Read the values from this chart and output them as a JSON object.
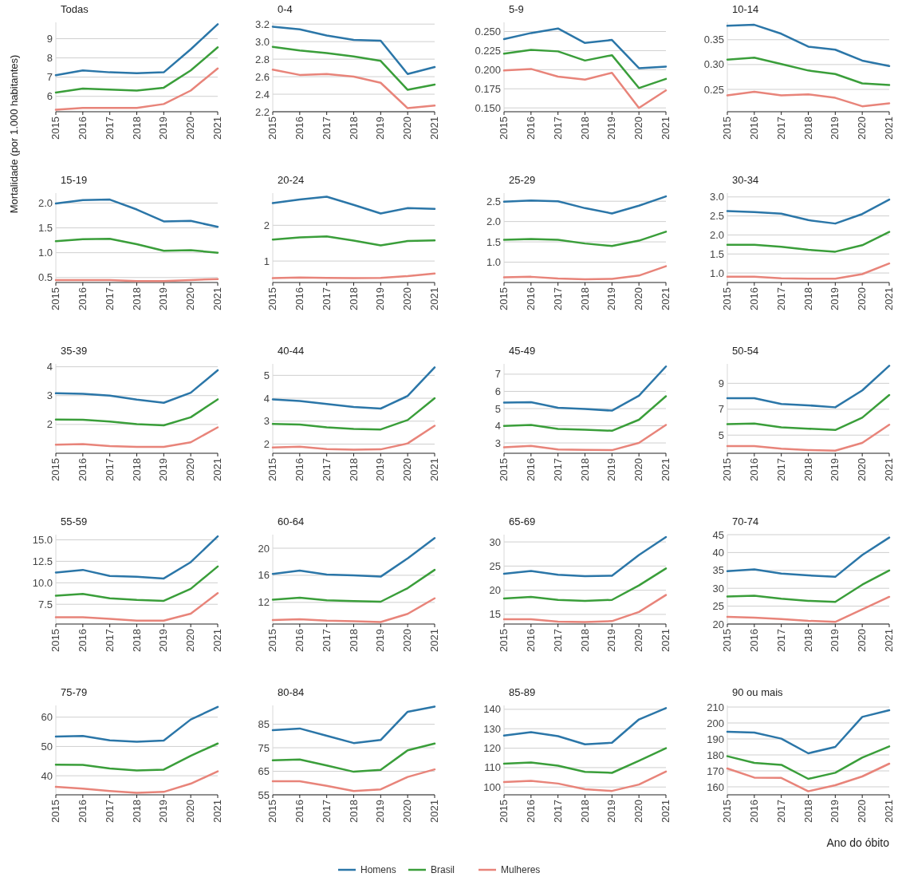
{
  "chart_data": [
    {
      "type": "line",
      "title": "Todas",
      "ylabel": "Mortalidade (por 1.000 habitantes)",
      "legend": "bottom",
      "grid": "y",
      "categories": [
        "2015",
        "2016",
        "2017",
        "2018",
        "2019",
        "2020",
        "2021"
      ],
      "ylim": [
        5.2,
        9.85
      ],
      "yticks": [
        6,
        7,
        8,
        9
      ],
      "series": [
        {
          "name": "Homens",
          "color": "#2b76a8",
          "values": [
            7.1,
            7.35,
            7.25,
            7.2,
            7.25,
            8.45,
            9.75
          ]
        },
        {
          "name": "Brasil",
          "color": "#3a9e3a",
          "values": [
            6.2,
            6.4,
            6.35,
            6.3,
            6.45,
            7.35,
            8.55
          ]
        },
        {
          "name": "Mulheres",
          "color": "#e8847a",
          "values": [
            5.3,
            5.4,
            5.4,
            5.4,
            5.6,
            6.3,
            7.45
          ]
        }
      ]
    },
    {
      "type": "line",
      "title": "0-4",
      "grid": "y",
      "categories": [
        "2015",
        "2016",
        "2017",
        "2018",
        "2019",
        "2020",
        "2021"
      ],
      "ylim": [
        2.2,
        3.22
      ],
      "yticks": [
        2.2,
        2.4,
        2.6,
        2.8,
        {
          "value": 3,
          "label": "3.0"
        },
        3.2
      ],
      "series": [
        {
          "name": "Homens",
          "color": "#2b76a8",
          "values": [
            3.17,
            3.14,
            3.07,
            3.02,
            3.01,
            2.63,
            2.71
          ]
        },
        {
          "name": "Brasil",
          "color": "#3a9e3a",
          "values": [
            2.94,
            2.9,
            2.87,
            2.83,
            2.78,
            2.45,
            2.51
          ]
        },
        {
          "name": "Mulheres",
          "color": "#e8847a",
          "values": [
            2.68,
            2.62,
            2.63,
            2.6,
            2.53,
            2.24,
            2.27
          ]
        }
      ]
    },
    {
      "type": "line",
      "title": "5-9",
      "grid": "y",
      "categories": [
        "2015",
        "2016",
        "2017",
        "2018",
        "2019",
        "2020",
        "2021"
      ],
      "ylim": [
        0.145,
        0.262
      ],
      "yticks": [
        {
          "value": 0.15,
          "label": "0.150"
        },
        0.175,
        {
          "value": 0.2,
          "label": "0.200"
        },
        0.225,
        {
          "value": 0.25,
          "label": "0.250"
        }
      ],
      "series": [
        {
          "name": "Homens",
          "color": "#2b76a8",
          "values": [
            0.24,
            0.248,
            0.254,
            0.235,
            0.239,
            0.202,
            0.204
          ]
        },
        {
          "name": "Brasil",
          "color": "#3a9e3a",
          "values": [
            0.221,
            0.226,
            0.224,
            0.212,
            0.219,
            0.176,
            0.188
          ]
        },
        {
          "name": "Mulheres",
          "color": "#e8847a",
          "values": [
            0.199,
            0.201,
            0.191,
            0.187,
            0.196,
            0.15,
            0.173
          ]
        }
      ]
    },
    {
      "type": "line",
      "title": "10-14",
      "grid": "y",
      "categories": [
        "2015",
        "2016",
        "2017",
        "2018",
        "2019",
        "2020",
        "2021"
      ],
      "ylim": [
        0.205,
        0.385
      ],
      "yticks": [
        0.25,
        {
          "value": 0.3,
          "label": "0.30"
        },
        0.35
      ],
      "series": [
        {
          "name": "Homens",
          "color": "#2b76a8",
          "values": [
            0.378,
            0.38,
            0.362,
            0.336,
            0.33,
            0.308,
            0.297
          ]
        },
        {
          "name": "Brasil",
          "color": "#3a9e3a",
          "values": [
            0.31,
            0.314,
            0.301,
            0.288,
            0.281,
            0.262,
            0.259
          ]
        },
        {
          "name": "Mulheres",
          "color": "#e8847a",
          "values": [
            0.238,
            0.245,
            0.238,
            0.24,
            0.233,
            0.216,
            0.222
          ]
        }
      ]
    },
    {
      "type": "line",
      "title": "15-19",
      "grid": "y",
      "categories": [
        "2015",
        "2016",
        "2017",
        "2018",
        "2019",
        "2020",
        "2021"
      ],
      "ylim": [
        0.4,
        2.2
      ],
      "yticks": [
        0.5,
        {
          "value": 1,
          "label": "1.0"
        },
        1.5,
        {
          "value": 2,
          "label": "2.0"
        }
      ],
      "series": [
        {
          "name": "Homens",
          "color": "#2b76a8",
          "values": [
            1.99,
            2.06,
            2.07,
            1.87,
            1.63,
            1.64,
            1.52
          ]
        },
        {
          "name": "Brasil",
          "color": "#3a9e3a",
          "values": [
            1.23,
            1.27,
            1.28,
            1.17,
            1.04,
            1.05,
            1.0
          ]
        },
        {
          "name": "Mulheres",
          "color": "#e8847a",
          "values": [
            0.45,
            0.45,
            0.45,
            0.43,
            0.43,
            0.45,
            0.47
          ]
        }
      ]
    },
    {
      "type": "line",
      "title": "20-24",
      "grid": "y",
      "categories": [
        "2015",
        "2016",
        "2017",
        "2018",
        "2019",
        "2020",
        "2021"
      ],
      "ylim": [
        0.4,
        2.9
      ],
      "yticks": [
        1,
        2
      ],
      "series": [
        {
          "name": "Homens",
          "color": "#2b76a8",
          "values": [
            2.62,
            2.72,
            2.8,
            2.57,
            2.33,
            2.48,
            2.46
          ]
        },
        {
          "name": "Brasil",
          "color": "#3a9e3a",
          "values": [
            1.6,
            1.66,
            1.69,
            1.57,
            1.44,
            1.56,
            1.58
          ]
        },
        {
          "name": "Mulheres",
          "color": "#e8847a",
          "values": [
            0.52,
            0.54,
            0.53,
            0.52,
            0.53,
            0.58,
            0.65
          ]
        }
      ]
    },
    {
      "type": "line",
      "title": "25-29",
      "grid": "y",
      "categories": [
        "2015",
        "2016",
        "2017",
        "2018",
        "2019",
        "2020",
        "2021"
      ],
      "ylim": [
        0.5,
        2.7
      ],
      "yticks": [
        {
          "value": 1,
          "label": "1.0"
        },
        1.5,
        {
          "value": 2,
          "label": "2.0"
        },
        2.5
      ],
      "series": [
        {
          "name": "Homens",
          "color": "#2b76a8",
          "values": [
            2.49,
            2.52,
            2.5,
            2.33,
            2.2,
            2.39,
            2.62
          ]
        },
        {
          "name": "Brasil",
          "color": "#3a9e3a",
          "values": [
            1.55,
            1.57,
            1.55,
            1.46,
            1.4,
            1.53,
            1.75
          ]
        },
        {
          "name": "Mulheres",
          "color": "#e8847a",
          "values": [
            0.63,
            0.64,
            0.6,
            0.58,
            0.59,
            0.67,
            0.9
          ]
        }
      ]
    },
    {
      "type": "line",
      "title": "30-34",
      "grid": "y",
      "categories": [
        "2015",
        "2016",
        "2017",
        "2018",
        "2019",
        "2020",
        "2021"
      ],
      "ylim": [
        0.75,
        3.1
      ],
      "yticks": [
        {
          "value": 1,
          "label": "1.0"
        },
        1.5,
        {
          "value": 2,
          "label": "2.0"
        },
        2.5,
        {
          "value": 3,
          "label": "3.0"
        }
      ],
      "series": [
        {
          "name": "Homens",
          "color": "#2b76a8",
          "values": [
            2.63,
            2.6,
            2.56,
            2.39,
            2.3,
            2.55,
            2.93
          ]
        },
        {
          "name": "Brasil",
          "color": "#3a9e3a",
          "values": [
            1.74,
            1.74,
            1.69,
            1.61,
            1.56,
            1.73,
            2.08
          ]
        },
        {
          "name": "Mulheres",
          "color": "#e8847a",
          "values": [
            0.9,
            0.9,
            0.86,
            0.85,
            0.85,
            0.97,
            1.25
          ]
        }
      ]
    },
    {
      "type": "line",
      "title": "35-39",
      "grid": "y",
      "categories": [
        "2015",
        "2016",
        "2017",
        "2018",
        "2019",
        "2020",
        "2021"
      ],
      "ylim": [
        1.0,
        4.1
      ],
      "yticks": [
        2,
        3,
        4
      ],
      "series": [
        {
          "name": "Homens",
          "color": "#2b76a8",
          "values": [
            3.08,
            3.06,
            3.0,
            2.86,
            2.75,
            3.1,
            3.88
          ]
        },
        {
          "name": "Brasil",
          "color": "#3a9e3a",
          "values": [
            2.17,
            2.16,
            2.1,
            2.01,
            1.97,
            2.25,
            2.87
          ]
        },
        {
          "name": "Mulheres",
          "color": "#e8847a",
          "values": [
            1.3,
            1.32,
            1.25,
            1.22,
            1.22,
            1.38,
            1.9
          ]
        }
      ]
    },
    {
      "type": "line",
      "title": "40-44",
      "grid": "y",
      "categories": [
        "2015",
        "2016",
        "2017",
        "2018",
        "2019",
        "2020",
        "2021"
      ],
      "ylim": [
        1.6,
        5.5
      ],
      "yticks": [
        2,
        3,
        4,
        5
      ],
      "series": [
        {
          "name": "Homens",
          "color": "#2b76a8",
          "values": [
            3.95,
            3.88,
            3.75,
            3.62,
            3.55,
            4.1,
            5.35
          ]
        },
        {
          "name": "Brasil",
          "color": "#3a9e3a",
          "values": [
            2.88,
            2.85,
            2.73,
            2.66,
            2.64,
            3.05,
            4.0
          ]
        },
        {
          "name": "Mulheres",
          "color": "#e8847a",
          "values": [
            1.85,
            1.89,
            1.78,
            1.76,
            1.77,
            2.03,
            2.8
          ]
        }
      ]
    },
    {
      "type": "line",
      "title": "45-49",
      "grid": "y",
      "categories": [
        "2015",
        "2016",
        "2017",
        "2018",
        "2019",
        "2020",
        "2021"
      ],
      "ylim": [
        2.4,
        7.6
      ],
      "yticks": [
        3,
        4,
        5,
        6,
        7
      ],
      "series": [
        {
          "name": "Homens",
          "color": "#2b76a8",
          "values": [
            5.35,
            5.37,
            5.05,
            4.98,
            4.88,
            5.75,
            7.45
          ]
        },
        {
          "name": "Brasil",
          "color": "#3a9e3a",
          "values": [
            3.99,
            4.05,
            3.82,
            3.77,
            3.71,
            4.35,
            5.72
          ]
        },
        {
          "name": "Mulheres",
          "color": "#e8847a",
          "values": [
            2.75,
            2.83,
            2.62,
            2.6,
            2.58,
            3.0,
            4.05
          ]
        }
      ]
    },
    {
      "type": "line",
      "title": "50-54",
      "grid": "y",
      "categories": [
        "2015",
        "2016",
        "2017",
        "2018",
        "2019",
        "2020",
        "2021"
      ],
      "ylim": [
        3.6,
        10.5
      ],
      "yticks": [
        5,
        7,
        9
      ],
      "series": [
        {
          "name": "Homens",
          "color": "#2b76a8",
          "values": [
            7.85,
            7.85,
            7.4,
            7.3,
            7.15,
            8.45,
            10.35
          ]
        },
        {
          "name": "Brasil",
          "color": "#3a9e3a",
          "values": [
            5.85,
            5.9,
            5.6,
            5.5,
            5.4,
            6.35,
            8.1
          ]
        },
        {
          "name": "Mulheres",
          "color": "#e8847a",
          "values": [
            4.15,
            4.15,
            3.95,
            3.85,
            3.8,
            4.4,
            5.8
          ]
        }
      ]
    },
    {
      "type": "line",
      "title": "55-59",
      "grid": "y",
      "categories": [
        "2015",
        "2016",
        "2017",
        "2018",
        "2019",
        "2020",
        "2021"
      ],
      "ylim": [
        5.2,
        15.6
      ],
      "yticks": [
        7.5,
        {
          "value": 10,
          "label": "10.0"
        },
        12.5,
        {
          "value": 15,
          "label": "15.0"
        }
      ],
      "series": [
        {
          "name": "Homens",
          "color": "#2b76a8",
          "values": [
            11.2,
            11.5,
            10.8,
            10.7,
            10.5,
            12.4,
            15.4
          ]
        },
        {
          "name": "Brasil",
          "color": "#3a9e3a",
          "values": [
            8.5,
            8.7,
            8.2,
            8.0,
            7.9,
            9.3,
            11.9
          ]
        },
        {
          "name": "Mulheres",
          "color": "#e8847a",
          "values": [
            6.0,
            6.0,
            5.8,
            5.6,
            5.6,
            6.4,
            8.8
          ]
        }
      ]
    },
    {
      "type": "line",
      "title": "60-64",
      "grid": "y",
      "categories": [
        "2015",
        "2016",
        "2017",
        "2018",
        "2019",
        "2020",
        "2021"
      ],
      "ylim": [
        8.8,
        22
      ],
      "yticks": [
        12,
        16,
        20
      ],
      "series": [
        {
          "name": "Homens",
          "color": "#2b76a8",
          "values": [
            16.2,
            16.7,
            16.1,
            16.0,
            15.8,
            18.5,
            21.5
          ]
        },
        {
          "name": "Brasil",
          "color": "#3a9e3a",
          "values": [
            12.4,
            12.7,
            12.3,
            12.2,
            12.1,
            14.1,
            16.8
          ]
        },
        {
          "name": "Mulheres",
          "color": "#e8847a",
          "values": [
            9.4,
            9.5,
            9.3,
            9.2,
            9.1,
            10.3,
            12.6
          ]
        }
      ]
    },
    {
      "type": "line",
      "title": "65-69",
      "grid": "y",
      "categories": [
        "2015",
        "2016",
        "2017",
        "2018",
        "2019",
        "2020",
        "2021"
      ],
      "ylim": [
        13,
        31.5
      ],
      "yticks": [
        15,
        20,
        25,
        30
      ],
      "series": [
        {
          "name": "Homens",
          "color": "#2b76a8",
          "values": [
            23.4,
            24.0,
            23.2,
            22.9,
            23.0,
            27.3,
            31.0
          ]
        },
        {
          "name": "Brasil",
          "color": "#3a9e3a",
          "values": [
            18.3,
            18.6,
            18.0,
            17.8,
            18.0,
            21.0,
            24.5
          ]
        },
        {
          "name": "Mulheres",
          "color": "#e8847a",
          "values": [
            14.0,
            14.0,
            13.5,
            13.4,
            13.6,
            15.5,
            19.0
          ]
        }
      ]
    },
    {
      "type": "line",
      "title": "70-74",
      "grid": "y",
      "categories": [
        "2015",
        "2016",
        "2017",
        "2018",
        "2019",
        "2020",
        "2021"
      ],
      "ylim": [
        20,
        45
      ],
      "yticks": [
        20,
        25,
        30,
        35,
        40,
        45
      ],
      "series": [
        {
          "name": "Homens",
          "color": "#2b76a8",
          "values": [
            34.8,
            35.3,
            34.1,
            33.6,
            33.2,
            39.3,
            44.2
          ]
        },
        {
          "name": "Brasil",
          "color": "#3a9e3a",
          "values": [
            27.7,
            27.9,
            27.1,
            26.5,
            26.2,
            31.0,
            35.0
          ]
        },
        {
          "name": "Mulheres",
          "color": "#e8847a",
          "values": [
            22.0,
            21.8,
            21.4,
            20.9,
            20.6,
            24.1,
            27.6
          ]
        }
      ]
    },
    {
      "type": "line",
      "title": "75-79",
      "grid": "y",
      "categories": [
        "2015",
        "2016",
        "2017",
        "2018",
        "2019",
        "2020",
        "2021"
      ],
      "ylim": [
        33.5,
        64
      ],
      "yticks": [
        40,
        50,
        60
      ],
      "series": [
        {
          "name": "Homens",
          "color": "#2b76a8",
          "values": [
            53.4,
            53.6,
            52.1,
            51.6,
            52.0,
            59.2,
            63.5
          ]
        },
        {
          "name": "Brasil",
          "color": "#3a9e3a",
          "values": [
            43.8,
            43.7,
            42.5,
            41.8,
            42.1,
            46.8,
            51.0
          ]
        },
        {
          "name": "Mulheres",
          "color": "#e8847a",
          "values": [
            36.2,
            35.6,
            34.8,
            34.2,
            34.5,
            37.3,
            41.5
          ]
        }
      ]
    },
    {
      "type": "line",
      "title": "80-84",
      "grid": "y",
      "categories": [
        "2015",
        "2016",
        "2017",
        "2018",
        "2019",
        "2020",
        "2021"
      ],
      "ylim": [
        55,
        93
      ],
      "yticks": [
        55,
        65,
        75,
        85
      ],
      "series": [
        {
          "name": "Homens",
          "color": "#2b76a8",
          "values": [
            82.5,
            83.2,
            80.1,
            77.0,
            78.3,
            90.3,
            92.5
          ]
        },
        {
          "name": "Brasil",
          "color": "#3a9e3a",
          "values": [
            69.7,
            70.0,
            67.5,
            64.8,
            65.6,
            73.9,
            76.8
          ]
        },
        {
          "name": "Mulheres",
          "color": "#e8847a",
          "values": [
            60.8,
            60.8,
            58.8,
            56.6,
            57.3,
            62.6,
            65.8
          ]
        }
      ]
    },
    {
      "type": "line",
      "title": "85-89",
      "grid": "y",
      "categories": [
        "2015",
        "2016",
        "2017",
        "2018",
        "2019",
        "2020",
        "2021"
      ],
      "ylim": [
        96,
        142
      ],
      "yticks": [
        100,
        110,
        120,
        130,
        140
      ],
      "series": [
        {
          "name": "Homens",
          "color": "#2b76a8",
          "values": [
            126.5,
            128.2,
            126.2,
            122.0,
            122.8,
            134.8,
            140.6
          ]
        },
        {
          "name": "Brasil",
          "color": "#3a9e3a",
          "values": [
            112.0,
            112.6,
            111.0,
            107.8,
            107.3,
            113.5,
            120.0
          ]
        },
        {
          "name": "Mulheres",
          "color": "#e8847a",
          "values": [
            102.6,
            103.2,
            101.8,
            98.9,
            98.0,
            101.3,
            108.0
          ]
        }
      ]
    },
    {
      "type": "line",
      "title": "90 ou mais",
      "xlabel": "Ano do óbito",
      "grid": "y",
      "categories": [
        "2015",
        "2016",
        "2017",
        "2018",
        "2019",
        "2020",
        "2021"
      ],
      "ylim": [
        155,
        211
      ],
      "yticks": [
        160,
        170,
        180,
        190,
        200,
        210
      ],
      "series": [
        {
          "name": "Homens",
          "color": "#2b76a8",
          "values": [
            194.5,
            194.0,
            190.2,
            181.0,
            185.0,
            203.8,
            208.0
          ]
        },
        {
          "name": "Brasil",
          "color": "#3a9e3a",
          "values": [
            179.2,
            175.0,
            173.8,
            165.0,
            168.8,
            178.3,
            185.3
          ]
        },
        {
          "name": "Mulheres",
          "color": "#e8847a",
          "values": [
            171.5,
            165.8,
            165.6,
            157.2,
            161.0,
            166.5,
            174.5
          ]
        }
      ]
    }
  ]
}
